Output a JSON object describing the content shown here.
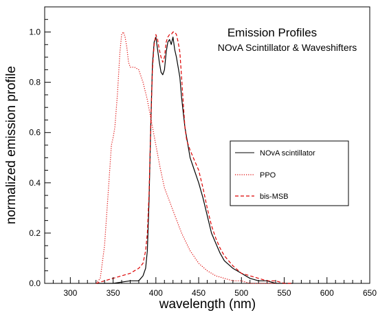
{
  "chart_data": {
    "type": "line",
    "title": "Emission Profiles",
    "subtitle": "NOvA Scintillator & Waveshifters",
    "xlabel": "wavelength (nm)",
    "ylabel": "normalized emission profile",
    "xlim": [
      270,
      650
    ],
    "ylim": [
      0,
      1.1
    ],
    "xticks": [
      "300",
      "350",
      "400",
      "450",
      "500",
      "550",
      "600",
      "650"
    ],
    "yticks": [
      "0.0",
      "0.2",
      "0.4",
      "0.6",
      "0.8",
      "1.0"
    ],
    "grid": false,
    "legend_position": "right",
    "series": [
      {
        "name": "NOvA scintillator",
        "color": "#000000",
        "dash": "solid",
        "x": [
          330,
          350,
          370,
          380,
          385,
          388,
          390,
          392,
          394,
          396,
          398,
          400,
          402,
          404,
          406,
          408,
          410,
          412,
          414,
          416,
          418,
          420,
          422,
          424,
          426,
          428,
          430,
          432,
          434,
          436,
          438,
          440,
          445,
          450,
          455,
          460,
          465,
          470,
          475,
          480,
          490,
          500,
          510,
          520,
          530,
          540,
          550,
          560
        ],
        "y": [
          0.0,
          0.0,
          0.01,
          0.01,
          0.03,
          0.06,
          0.13,
          0.33,
          0.62,
          0.87,
          0.96,
          0.98,
          0.93,
          0.88,
          0.84,
          0.83,
          0.85,
          0.92,
          0.96,
          0.97,
          0.95,
          0.98,
          0.93,
          0.9,
          0.86,
          0.82,
          0.74,
          0.68,
          0.62,
          0.58,
          0.54,
          0.5,
          0.45,
          0.4,
          0.34,
          0.27,
          0.2,
          0.16,
          0.12,
          0.09,
          0.06,
          0.04,
          0.02,
          0.01,
          0.01,
          0.0,
          0.0,
          0.0
        ]
      },
      {
        "name": "PPO",
        "color": "#dd0000",
        "dash": "dotted",
        "x": [
          330,
          335,
          340,
          345,
          348,
          350,
          352,
          355,
          358,
          360,
          362,
          364,
          366,
          368,
          370,
          372,
          375,
          380,
          385,
          390,
          395,
          400,
          405,
          410,
          420,
          430,
          440,
          450,
          460,
          470,
          480,
          490,
          500,
          510,
          520,
          530,
          540
        ],
        "y": [
          0.0,
          0.02,
          0.15,
          0.4,
          0.55,
          0.58,
          0.62,
          0.75,
          0.92,
          0.99,
          1.0,
          0.98,
          0.94,
          0.88,
          0.86,
          0.86,
          0.86,
          0.85,
          0.8,
          0.73,
          0.64,
          0.55,
          0.46,
          0.38,
          0.29,
          0.2,
          0.13,
          0.08,
          0.05,
          0.03,
          0.02,
          0.01,
          0.01,
          0.0,
          0.0,
          0.0,
          0.0
        ]
      },
      {
        "name": "bis-MSB",
        "color": "#dd0000",
        "dash": "dashed",
        "x": [
          330,
          340,
          350,
          360,
          370,
          375,
          380,
          385,
          388,
          390,
          392,
          394,
          396,
          398,
          400,
          402,
          404,
          406,
          408,
          410,
          412,
          414,
          416,
          418,
          420,
          422,
          424,
          426,
          428,
          430,
          432,
          434,
          436,
          438,
          440,
          445,
          450,
          455,
          460,
          465,
          470,
          475,
          480,
          490,
          500,
          510,
          520,
          530,
          540,
          550,
          560
        ],
        "y": [
          0.0,
          0.01,
          0.02,
          0.03,
          0.04,
          0.05,
          0.06,
          0.08,
          0.13,
          0.2,
          0.36,
          0.62,
          0.85,
          0.95,
          0.99,
          0.97,
          0.93,
          0.9,
          0.88,
          0.9,
          0.96,
          0.98,
          0.99,
          0.99,
          1.0,
          1.0,
          0.99,
          0.96,
          0.92,
          0.82,
          0.72,
          0.62,
          0.57,
          0.55,
          0.53,
          0.49,
          0.45,
          0.38,
          0.3,
          0.23,
          0.18,
          0.14,
          0.11,
          0.07,
          0.04,
          0.03,
          0.02,
          0.01,
          0.01,
          0.0,
          0.0
        ]
      }
    ]
  }
}
